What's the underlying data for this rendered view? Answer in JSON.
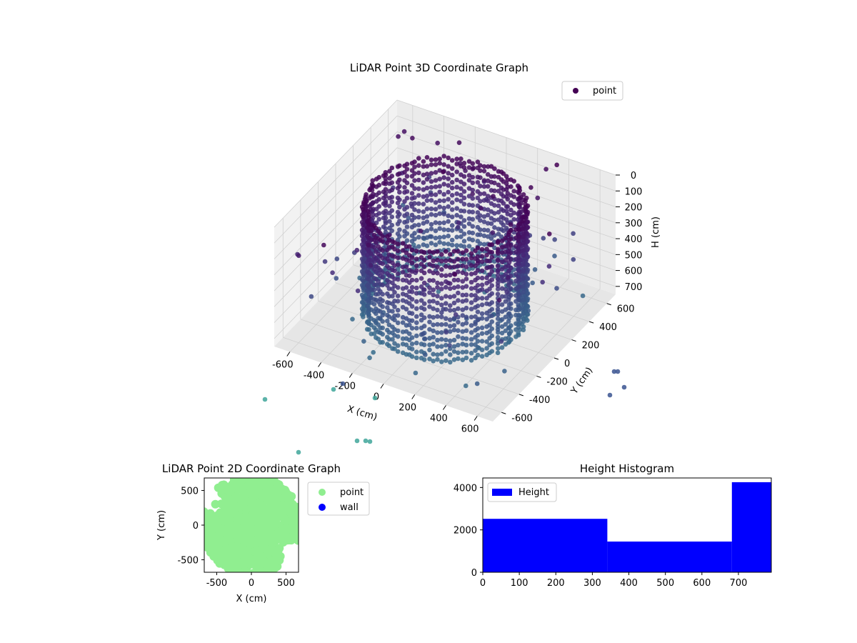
{
  "chart_data": [
    {
      "type": "scatter",
      "projection": "3d",
      "title": "LiDAR Point 3D Coordinate Graph",
      "xlabel": "X (cm)",
      "ylabel": "Y (cm)",
      "zlabel": "H (cm)",
      "xlim": [
        -700,
        700
      ],
      "ylim": [
        -700,
        700
      ],
      "zlim": [
        750,
        0
      ],
      "z_inverted": true,
      "xticks": [
        "-600",
        "-400",
        "-200",
        "0",
        "200",
        "400",
        "600"
      ],
      "yticks": [
        "-600",
        "-400",
        "-200",
        "0",
        "200",
        "400",
        "600"
      ],
      "zticks": [
        "0",
        "100",
        "200",
        "300",
        "400",
        "500",
        "600",
        "700"
      ],
      "legend": {
        "entries": [
          "point"
        ],
        "placement": "top-right"
      },
      "colormap": "viridis",
      "grid": true,
      "series": [
        {
          "name": "point",
          "description": "ring-shaped wall of LiDAR returns, radius about 450 cm, heights 0-750 cm, plus scattered outliers",
          "ring_radius": 450,
          "h_range": [
            0,
            750
          ]
        }
      ]
    },
    {
      "type": "scatter",
      "title": "LiDAR Point 2D Coordinate Graph",
      "xlabel": "X (cm)",
      "ylabel": "Y (cm)",
      "xlim": [
        -680,
        680
      ],
      "ylim": [
        -680,
        680
      ],
      "xticks": [
        "-500",
        "0",
        "500"
      ],
      "yticks": [
        "-500",
        "0",
        "500"
      ],
      "legend": {
        "entries": [
          "point",
          "wall"
        ],
        "placement": "outside-right"
      },
      "series": [
        {
          "name": "point",
          "color": "#90ee90"
        },
        {
          "name": "wall",
          "color": "#0000ff"
        }
      ]
    },
    {
      "type": "bar",
      "subtype": "histogram",
      "title": "Height Histogram",
      "bins": [
        [
          0,
          341
        ],
        [
          341,
          682
        ],
        [
          682,
          790
        ]
      ],
      "values": [
        2520,
        1450,
        4250
      ],
      "xlim": [
        0,
        790
      ],
      "ylim": [
        0,
        4450
      ],
      "xticks": [
        "0",
        "100",
        "200",
        "300",
        "400",
        "500",
        "600",
        "700"
      ],
      "yticks": [
        "0",
        "2000",
        "4000"
      ],
      "legend": {
        "entries": [
          "Height"
        ],
        "placement": "top-left"
      },
      "series": [
        {
          "name": "Height",
          "color": "#0000ff"
        }
      ]
    }
  ]
}
